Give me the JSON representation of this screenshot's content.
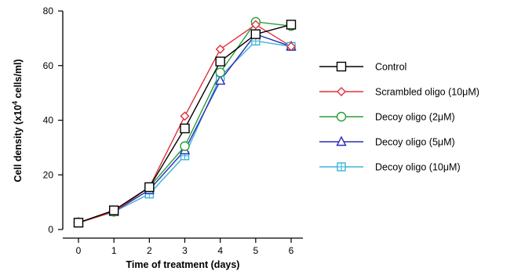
{
  "chart_data": {
    "type": "line",
    "xlabel": "Time of treatment (days)",
    "ylabel_main": "Cell density (x10",
    "ylabel_sup": "4",
    "ylabel_tail": " cells/ml)",
    "x": [
      0,
      1,
      2,
      3,
      4,
      5,
      6
    ],
    "xlim": [
      -0.5,
      6.5
    ],
    "ylim": [
      0,
      80
    ],
    "x_ticks": [
      "0",
      "1",
      "2",
      "3",
      "4",
      "5",
      "6"
    ],
    "y_ticks": [
      "0",
      "20",
      "40",
      "60",
      "80"
    ],
    "y_tick_values": [
      0,
      20,
      40,
      60,
      80
    ],
    "legend_position": "right",
    "series": [
      {
        "name": "Control",
        "marker": "square",
        "color": "#000000",
        "values": [
          2.5,
          7,
          15.5,
          37,
          61.5,
          71.5,
          75
        ]
      },
      {
        "name": "Scrambled oligo (10μM)",
        "marker": "diamond",
        "color": "#e0303a",
        "values": [
          2.5,
          6.5,
          15.5,
          41.5,
          66,
          75,
          67
        ]
      },
      {
        "name": "Decoy oligo (2μM)",
        "marker": "circle",
        "color": "#2a9d3a",
        "values": [
          2.5,
          6.5,
          15.5,
          30.5,
          57.5,
          76,
          74.5
        ]
      },
      {
        "name": "Decoy oligo (5μM)",
        "marker": "triangle",
        "color": "#2a2ab8",
        "values": [
          2.5,
          6.5,
          14.5,
          29,
          54.5,
          71.5,
          67
        ]
      },
      {
        "name": "Decoy oligo (10μM)",
        "marker": "boxplus",
        "color": "#3ab3d8",
        "values": [
          2.5,
          6.5,
          13,
          27,
          56,
          69,
          67
        ]
      }
    ]
  }
}
